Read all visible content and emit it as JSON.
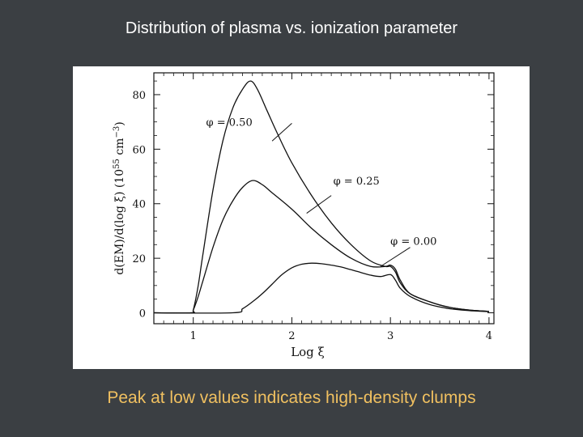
{
  "slide": {
    "title": "Distribution of plasma vs. ionization parameter",
    "caption": "Peak at low values indicates high-density clumps"
  },
  "colors": {
    "background": "#3b3f43",
    "title": "#ffffff",
    "caption": "#f0c060",
    "plot_ink": "#111111"
  },
  "chart_data": {
    "type": "line",
    "title": "",
    "xlabel": "Log ξ",
    "ylabel_parts": {
      "prefix": "d(EM)/d(log ξ)  (10",
      "exp1": "55",
      "mid": " cm",
      "exp2": "−3",
      "suffix": ")"
    },
    "xlim": [
      0.6,
      4.05
    ],
    "ylim": [
      -4,
      88
    ],
    "x_ticks": [
      1,
      2,
      3,
      4
    ],
    "x_tick_labels": [
      "1",
      "2",
      "3",
      "4"
    ],
    "y_ticks": [
      0,
      20,
      40,
      60,
      80
    ],
    "y_tick_labels": [
      "0",
      "20",
      "40",
      "60",
      "80"
    ],
    "series": [
      {
        "name": "φ = 0.50",
        "x": [
          0.6,
          0.98,
          1.0,
          1.05,
          1.1,
          1.2,
          1.3,
          1.4,
          1.5,
          1.58,
          1.65,
          1.75,
          1.85,
          2.0,
          2.2,
          2.4,
          2.6,
          2.8,
          2.95,
          3.0,
          3.05,
          3.1,
          3.2,
          3.4,
          3.6,
          3.8,
          4.0
        ],
        "y": [
          0,
          0,
          1,
          10,
          22,
          45,
          63,
          75,
          82,
          85,
          82,
          74,
          66,
          55,
          43,
          33,
          25,
          19,
          17,
          17,
          15,
          11,
          7,
          4,
          2,
          1,
          0.5
        ]
      },
      {
        "name": "φ = 0.25",
        "x": [
          0.6,
          0.98,
          1.0,
          1.05,
          1.1,
          1.2,
          1.3,
          1.4,
          1.5,
          1.6,
          1.7,
          1.8,
          2.0,
          2.2,
          2.4,
          2.6,
          2.8,
          2.95,
          3.0,
          3.05,
          3.1,
          3.2,
          3.4,
          3.6,
          3.8,
          4.0
        ],
        "y": [
          0,
          0,
          1,
          6,
          12,
          24,
          34,
          41,
          46,
          48.5,
          47,
          44,
          38,
          31,
          25,
          20,
          17,
          17,
          17.5,
          16,
          12,
          7,
          4,
          2,
          1,
          0.5
        ]
      },
      {
        "name": "φ = 0.00",
        "x": [
          0.6,
          1.4,
          1.5,
          1.6,
          1.7,
          1.8,
          1.9,
          2.0,
          2.1,
          2.2,
          2.3,
          2.4,
          2.5,
          2.6,
          2.7,
          2.8,
          2.9,
          3.0,
          3.05,
          3.1,
          3.2,
          3.4,
          3.6,
          3.8,
          4.0
        ],
        "y": [
          0,
          0,
          1.5,
          4,
          7,
          10.5,
          14,
          16.5,
          17.8,
          18.2,
          18,
          17.5,
          16.8,
          15.8,
          14.8,
          13.8,
          13.3,
          14,
          12,
          9,
          6,
          3,
          1.5,
          0.8,
          0.4
        ]
      }
    ],
    "annotations": [
      {
        "text": "φ = 0.50",
        "label_x": 1.13,
        "label_y": 68.5,
        "arrow_from": [
          2.0,
          69.5
        ],
        "arrow_to": [
          1.8,
          63
        ]
      },
      {
        "text": "φ = 0.25",
        "label_x": 2.42,
        "label_y": 47,
        "arrow_from": [
          2.4,
          43
        ],
        "arrow_to": [
          2.15,
          36.5
        ]
      },
      {
        "text": "φ = 0.00",
        "label_x": 3.0,
        "label_y": 25,
        "arrow_from": [
          3.2,
          24
        ],
        "arrow_to": [
          2.9,
          17
        ]
      }
    ]
  }
}
